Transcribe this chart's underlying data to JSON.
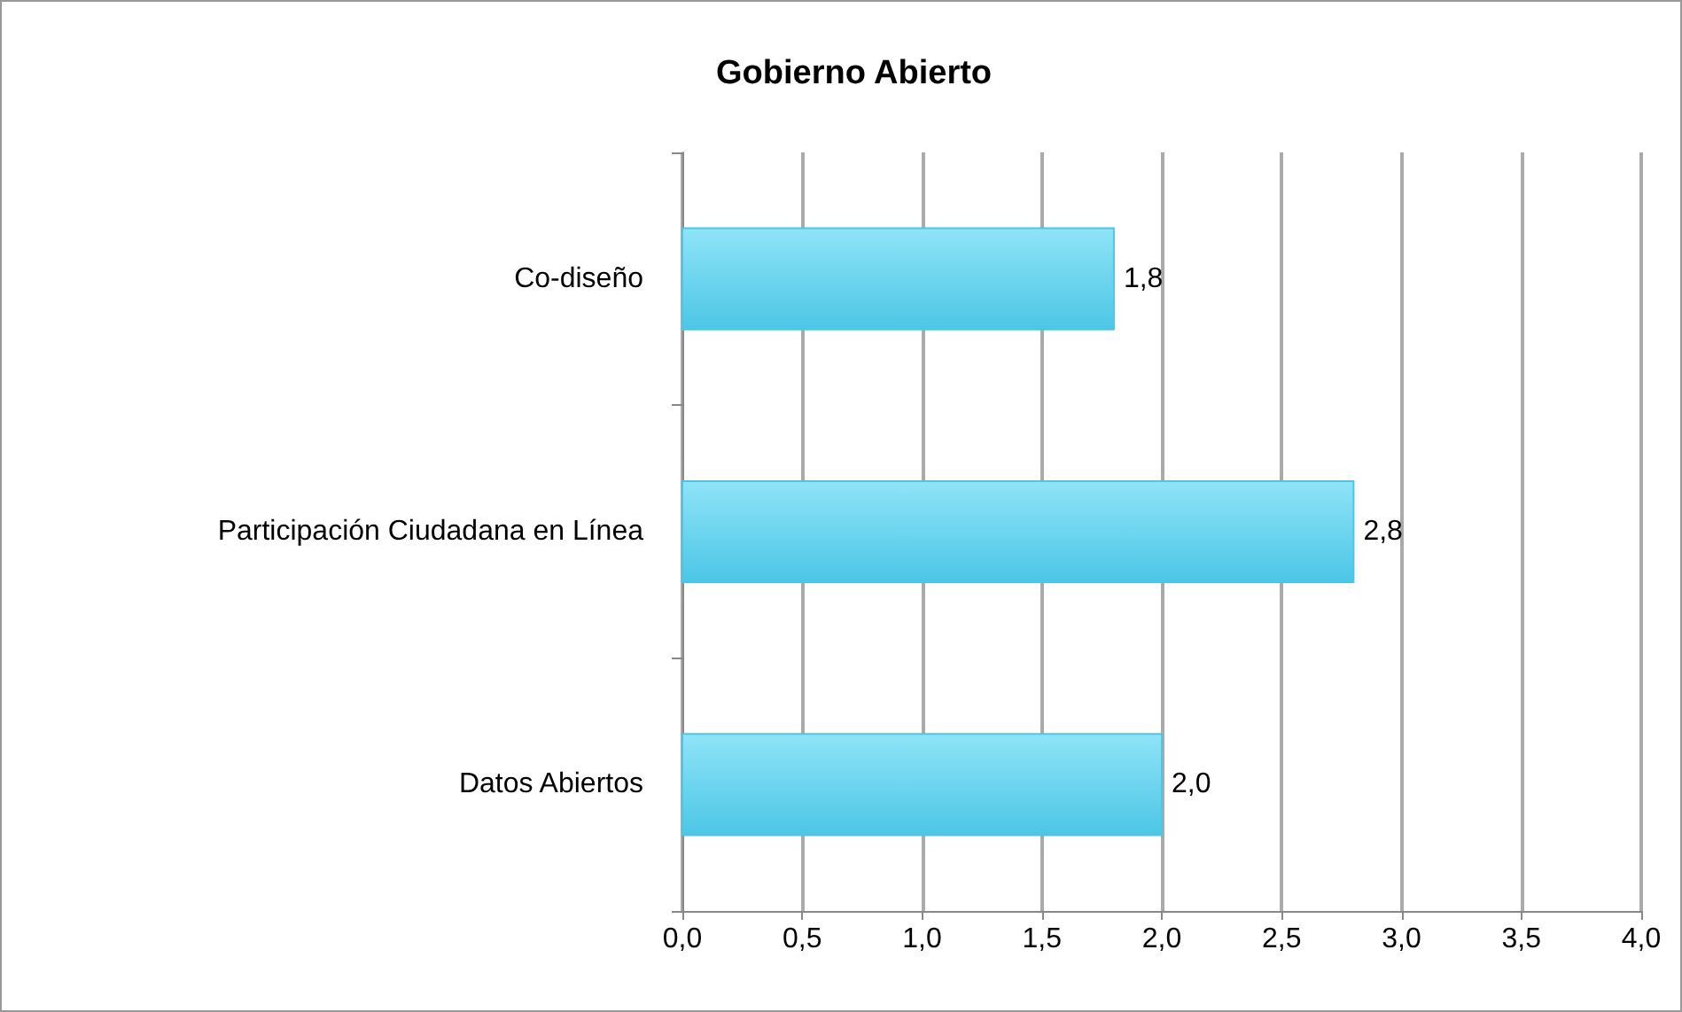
{
  "chart_data": {
    "type": "bar",
    "orientation": "horizontal",
    "title": "Gobierno Abierto",
    "categories": [
      "Co-diseño",
      "Participación Ciudadana en Línea",
      "Datos Abiertos"
    ],
    "values": [
      1.8,
      2.8,
      2.0
    ],
    "value_labels": [
      "1,8",
      "2,8",
      "2,0"
    ],
    "color": "#4cc6e6",
    "xlim": [
      0,
      4
    ],
    "xticks": [
      {
        "value": 0,
        "label": "0,0"
      },
      {
        "value": 0.5,
        "label": "0,5"
      },
      {
        "value": 1,
        "label": "1,0"
      },
      {
        "value": 1.5,
        "label": "1,5"
      },
      {
        "value": 2,
        "label": "2,0"
      },
      {
        "value": 2.5,
        "label": "2,5"
      },
      {
        "value": 3,
        "label": "3,0"
      },
      {
        "value": 3.5,
        "label": "3,5"
      },
      {
        "value": 4,
        "label": "4,0"
      }
    ],
    "grid": "x"
  }
}
